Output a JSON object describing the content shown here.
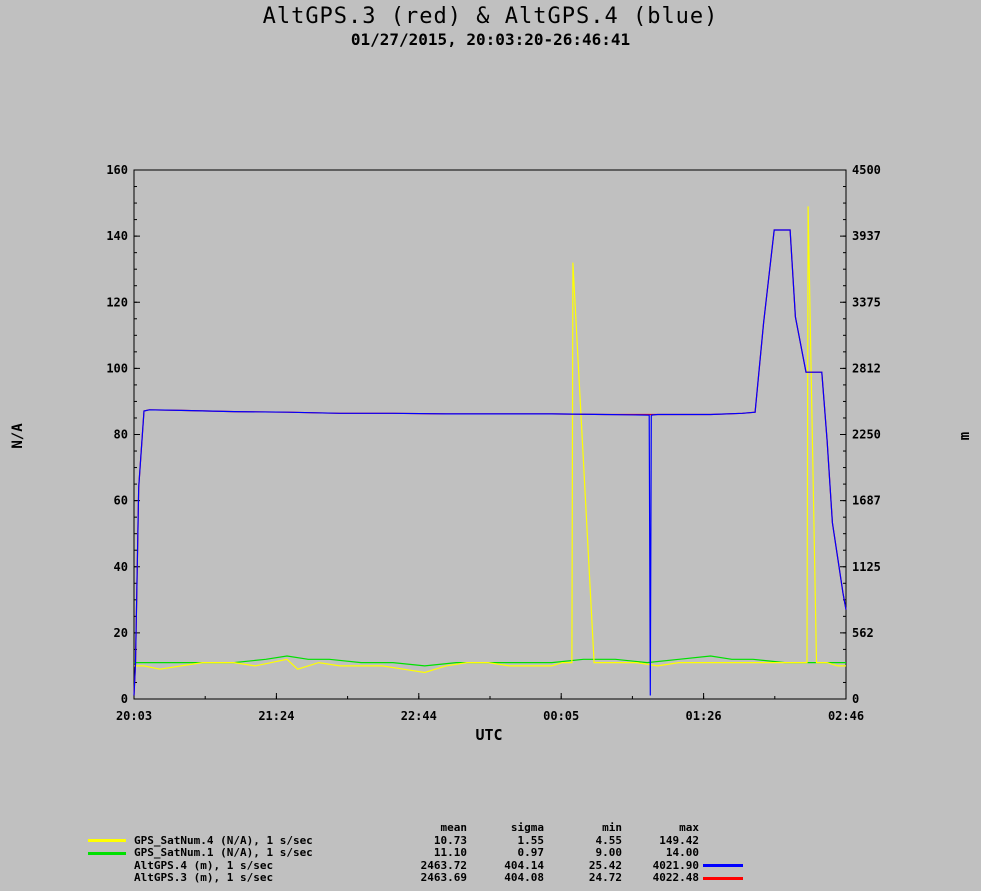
{
  "title": "AltGPS.3 (red) & AltGPS.4 (blue)",
  "subtitle": "01/27/2015, 20:03:20-26:46:41",
  "chart_data": {
    "type": "line",
    "xlabel": "UTC",
    "ylabel_left": "N/A",
    "ylabel_right": "m",
    "x_range_hours": [
      20.0556,
      26.7781
    ],
    "x_ticks": [
      "20:03",
      "21:24",
      "22:44",
      "00:05",
      "01:26",
      "02:46"
    ],
    "ylim_left": [
      0,
      160
    ],
    "ylim_right": [
      0,
      4500
    ],
    "y_ticks_left": [
      "0",
      "20",
      "40",
      "60",
      "80",
      "100",
      "120",
      "140",
      "160"
    ],
    "y_ticks_right": [
      "0",
      "562",
      "1125",
      "1687",
      "2250",
      "2812",
      "3375",
      "3937",
      "4500"
    ],
    "colors": {
      "yellow": "#ffff00",
      "green": "#00e000",
      "blue": "#0000ff",
      "red": "#ff0000"
    },
    "series": [
      {
        "name": "GPS_SatNum.4 (N/A), 1 s/sec",
        "axis": "left",
        "color": "#ffff00",
        "x": [
          20.056,
          20.15,
          20.3,
          20.5,
          20.7,
          21.0,
          21.2,
          21.5,
          21.6,
          21.8,
          22.0,
          22.2,
          22.4,
          22.6,
          22.8,
          23.0,
          23.2,
          23.4,
          23.6,
          23.8,
          24.0,
          24.1,
          24.19,
          24.2,
          24.4,
          24.6,
          24.8,
          25.0,
          25.2,
          25.4,
          25.6,
          25.8,
          26.0,
          26.2,
          26.3,
          26.41,
          26.42,
          26.5,
          26.6,
          26.7,
          26.778
        ],
        "values": [
          10,
          10,
          9,
          10,
          11,
          11,
          10,
          12,
          9,
          11,
          10,
          10,
          10,
          9,
          8,
          10,
          11,
          11,
          10,
          10,
          10,
          11,
          11,
          132,
          11,
          11,
          11,
          10,
          11,
          11,
          11,
          11,
          11,
          11,
          11,
          11,
          149,
          11,
          11,
          10,
          10
        ]
      },
      {
        "name": "GPS_SatNum.1 (N/A), 1 s/sec",
        "axis": "left",
        "color": "#00e000",
        "x": [
          20.056,
          20.3,
          20.7,
          21.0,
          21.3,
          21.5,
          21.7,
          21.9,
          22.2,
          22.5,
          22.8,
          23.1,
          23.4,
          23.7,
          24.0,
          24.3,
          24.6,
          24.9,
          25.2,
          25.5,
          25.7,
          25.9,
          26.2,
          26.5,
          26.778
        ],
        "values": [
          11,
          11,
          11,
          11,
          12,
          13,
          12,
          12,
          11,
          11,
          10,
          11,
          11,
          11,
          11,
          12,
          12,
          11,
          12,
          13,
          12,
          12,
          11,
          11,
          11
        ]
      },
      {
        "name": "AltGPS.4 (m), 1 s/sec",
        "axis": "right",
        "color": "#0000ff",
        "x": [
          20.056,
          20.07,
          20.1,
          20.15,
          20.2,
          20.5,
          21.0,
          21.5,
          22.0,
          22.5,
          23.0,
          23.5,
          24.0,
          24.5,
          24.92,
          24.93,
          24.94,
          25.0,
          25.5,
          25.8,
          25.92,
          26.0,
          26.1,
          26.18,
          26.25,
          26.3,
          26.4,
          26.5,
          26.55,
          26.6,
          26.65,
          26.7,
          26.75,
          26.778
        ],
        "values": [
          30,
          300,
          1800,
          2450,
          2460,
          2455,
          2445,
          2440,
          2430,
          2430,
          2425,
          2425,
          2425,
          2420,
          2415,
          30,
          2415,
          2420,
          2420,
          2430,
          2440,
          3200,
          3990,
          3990,
          3990,
          3250,
          2780,
          2780,
          2780,
          2200,
          1500,
          1200,
          900,
          760
        ]
      },
      {
        "name": "AltGPS.3 (m), 1 s/sec",
        "axis": "right",
        "color": "#ff0000",
        "x": [
          20.056,
          20.07,
          20.1,
          20.15,
          20.2,
          20.5,
          21.0,
          21.5,
          22.0,
          22.5,
          23.0,
          23.5,
          24.0,
          24.5,
          25.0,
          25.5,
          25.8,
          25.92,
          26.0,
          26.1,
          26.18,
          26.25,
          26.3,
          26.4,
          26.5,
          26.55,
          26.6,
          26.65,
          26.7,
          26.75,
          26.778
        ],
        "values": [
          30,
          300,
          1800,
          2450,
          2460,
          2455,
          2445,
          2440,
          2430,
          2430,
          2425,
          2425,
          2425,
          2420,
          2420,
          2420,
          2430,
          2440,
          3200,
          3990,
          3990,
          3990,
          3250,
          2780,
          2780,
          2780,
          2200,
          1500,
          1200,
          900,
          760
        ]
      }
    ],
    "stats_headers": [
      "mean",
      "sigma",
      "min",
      "max"
    ],
    "stats": [
      {
        "name": "GPS_SatNum.4 (N/A), 1 s/sec",
        "mean": "10.73",
        "sigma": "1.55",
        "min": "4.55",
        "max": "149.42",
        "swatch": "left",
        "color": "#ffff00"
      },
      {
        "name": "GPS_SatNum.1 (N/A), 1 s/sec",
        "mean": "11.10",
        "sigma": "0.97",
        "min": "9.00",
        "max": "14.00",
        "swatch": "left",
        "color": "#00e000"
      },
      {
        "name": "AltGPS.4 (m), 1 s/sec",
        "mean": "2463.72",
        "sigma": "404.14",
        "min": "25.42",
        "max": "4021.90",
        "swatch": "right",
        "color": "#0000ff"
      },
      {
        "name": "AltGPS.3 (m), 1 s/sec",
        "mean": "2463.69",
        "sigma": "404.08",
        "min": "24.72",
        "max": "4022.48",
        "swatch": "right",
        "color": "#ff0000"
      }
    ]
  }
}
